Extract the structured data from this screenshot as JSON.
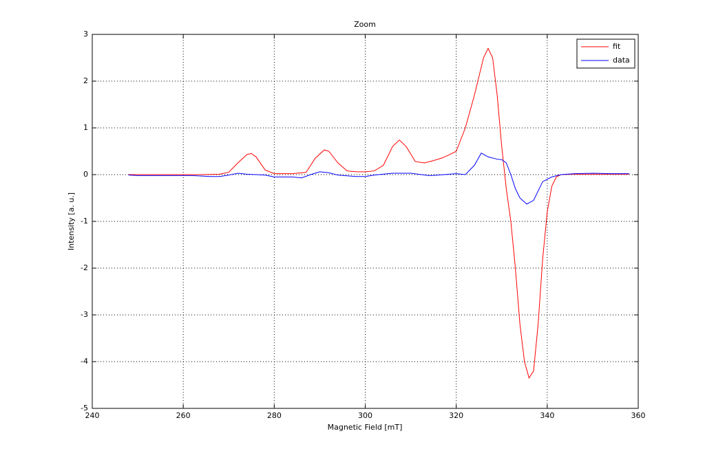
{
  "chart_data": {
    "type": "line",
    "title": "Zoom",
    "xlabel": "Magnetic Field [mT]",
    "ylabel": "Intensity [a. u.]",
    "xlim": [
      240,
      360
    ],
    "xticks": [
      240,
      260,
      280,
      300,
      320,
      340,
      360
    ],
    "ylim": [
      -5,
      3
    ],
    "yticks": [
      -5,
      -4,
      -3,
      -2,
      -1,
      0,
      1,
      2,
      3
    ],
    "grid": true,
    "legend": "northeast",
    "series": [
      {
        "name": "fit",
        "color": "#ff0000",
        "x": [
          248,
          252,
          256,
          260,
          264,
          268,
          270,
          272,
          274,
          275,
          276,
          278,
          280,
          284,
          287,
          289,
          291,
          292,
          294,
          296,
          298,
          300,
          302,
          304,
          306,
          307.5,
          309,
          311,
          313,
          315,
          317,
          319,
          320,
          322,
          324,
          326,
          327,
          328,
          329,
          330,
          331,
          332,
          333,
          334,
          335,
          336,
          337,
          338,
          339,
          340,
          341,
          342,
          343,
          346,
          350,
          354,
          358
        ],
        "values": [
          0,
          0,
          0,
          0,
          0,
          0.01,
          0.05,
          0.25,
          0.43,
          0.45,
          0.38,
          0.1,
          0.02,
          0.02,
          0.05,
          0.35,
          0.53,
          0.5,
          0.25,
          0.08,
          0.06,
          0.06,
          0.08,
          0.2,
          0.6,
          0.74,
          0.6,
          0.28,
          0.25,
          0.3,
          0.36,
          0.45,
          0.5,
          1.0,
          1.7,
          2.5,
          2.7,
          2.5,
          1.7,
          0.6,
          -0.3,
          -1.0,
          -2.0,
          -3.2,
          -4.0,
          -4.35,
          -4.2,
          -3.2,
          -1.8,
          -0.8,
          -0.25,
          -0.05,
          0,
          0.01,
          0.01,
          0.01,
          0.01
        ]
      },
      {
        "name": "data",
        "color": "#0000ff",
        "x": [
          248,
          250,
          254,
          258,
          262,
          266,
          268,
          270,
          272,
          274,
          278,
          280,
          284,
          286,
          288,
          290,
          292,
          294,
          298,
          300,
          302,
          306,
          310,
          314,
          316,
          320,
          322,
          324,
          325.5,
          327,
          329,
          330,
          331,
          332,
          333,
          334,
          335.5,
          337,
          338,
          339,
          341,
          343,
          346,
          350,
          354,
          358
        ],
        "values": [
          -0.01,
          -0.02,
          -0.02,
          -0.02,
          -0.02,
          -0.04,
          -0.04,
          -0.01,
          0.03,
          0.01,
          -0.01,
          -0.05,
          -0.05,
          -0.07,
          0.0,
          0.06,
          0.04,
          -0.01,
          -0.04,
          -0.04,
          -0.01,
          0.03,
          0.03,
          -0.02,
          -0.01,
          0.02,
          0.0,
          0.2,
          0.46,
          0.38,
          0.33,
          0.32,
          0.25,
          0.0,
          -0.3,
          -0.5,
          -0.63,
          -0.55,
          -0.35,
          -0.15,
          -0.05,
          0.0,
          0.02,
          0.03,
          0.02,
          0.02
        ]
      }
    ]
  }
}
